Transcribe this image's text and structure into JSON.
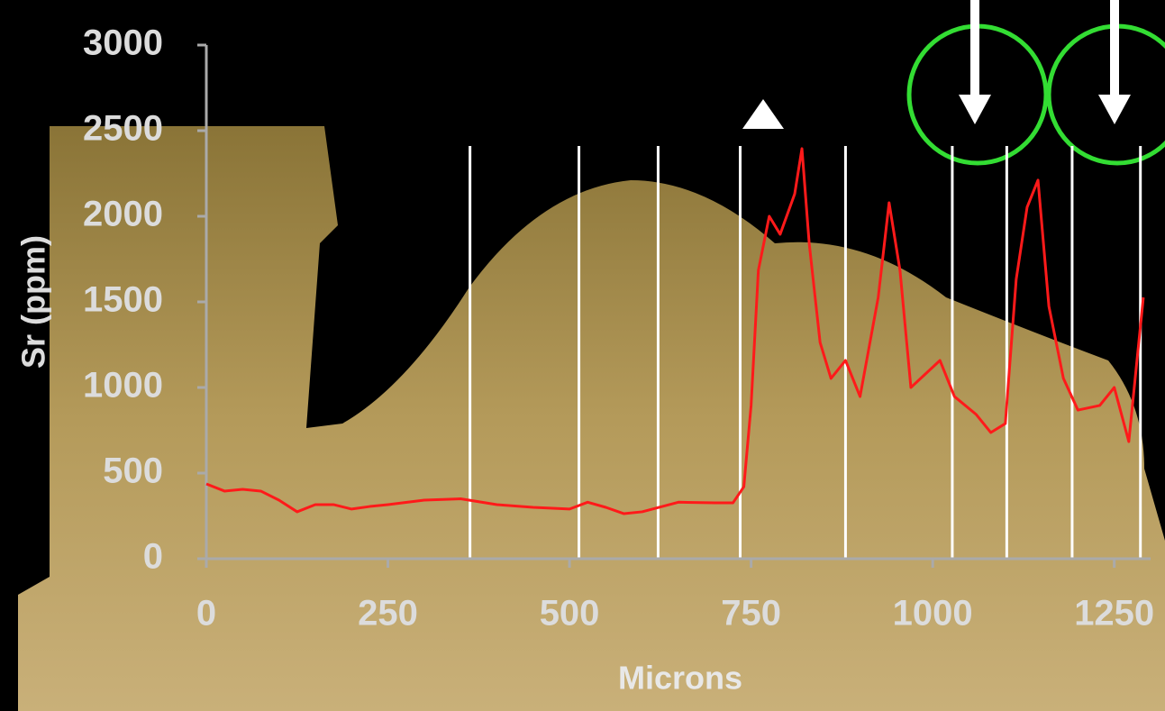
{
  "chart_data": {
    "type": "line",
    "x_label": "Microns",
    "y_label": "Sr (ppm)",
    "xlim": [
      0,
      1300
    ],
    "xticks": [
      0,
      250,
      500,
      750,
      1000,
      1250
    ],
    "ylim": [
      0,
      3000
    ],
    "yticks": [
      0,
      500,
      1000,
      1500,
      2000,
      2500,
      3000
    ],
    "vlines": [
      363,
      513,
      622,
      735,
      880,
      1027,
      1102,
      1192,
      1286
    ],
    "series": [
      {
        "color": "#ff1a1a",
        "x": [
          0,
          25,
          50,
          75,
          100,
          125,
          150,
          175,
          200,
          225,
          250,
          300,
          350,
          400,
          450,
          500,
          525,
          550,
          575,
          600,
          650,
          700,
          725,
          740,
          750,
          760,
          775,
          790,
          810,
          820,
          830,
          845,
          860,
          880,
          900,
          925,
          940,
          955,
          970,
          990,
          1010,
          1030,
          1060,
          1080,
          1100,
          1115,
          1130,
          1145,
          1160,
          1180,
          1200,
          1230,
          1250,
          1270,
          1290
        ],
        "values": [
          437,
          395,
          405,
          395,
          342,
          274,
          316,
          316,
          290,
          305,
          316,
          342,
          350,
          316,
          300,
          290,
          330,
          300,
          263,
          274,
          330,
          326,
          326,
          420,
          895,
          1684,
          2000,
          1895,
          2130,
          2395,
          1842,
          1263,
          1053,
          1158,
          947,
          1526,
          2079,
          1684,
          1000,
          1079,
          1158,
          947,
          842,
          737,
          789,
          1632,
          2053,
          2211,
          1474,
          1053,
          868,
          895,
          1000,
          684,
          1526
        ]
      }
    ]
  }
}
